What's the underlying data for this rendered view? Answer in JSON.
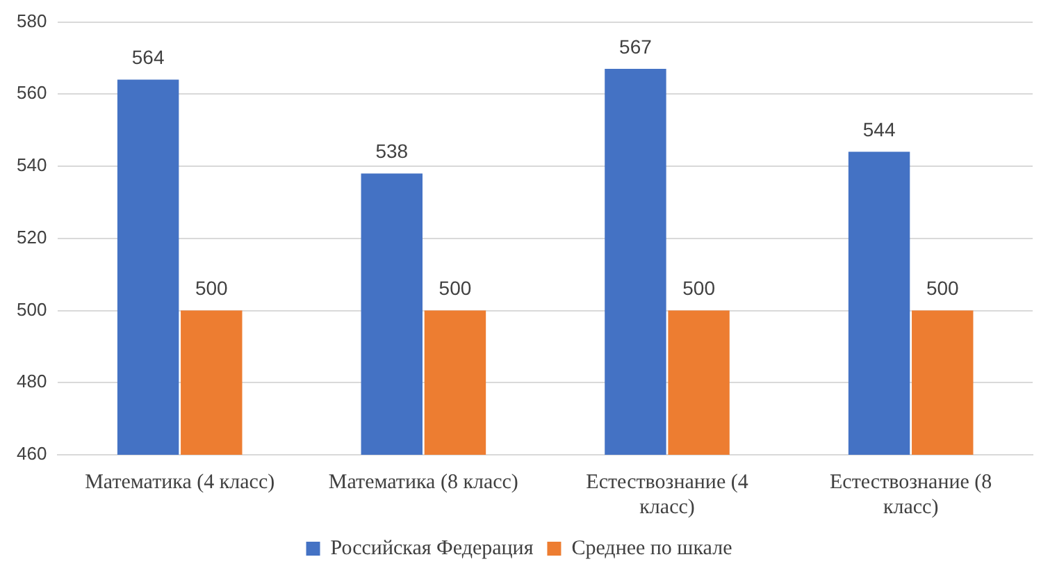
{
  "chart_data": {
    "type": "bar",
    "categories": [
      "Математика (4 класс)",
      "Математика (8 класс)",
      "Естествознание (4 класс)",
      "Естествознание (8 класс)"
    ],
    "series": [
      {
        "name": "Российская Федерация",
        "color": "#4472c4",
        "values": [
          564,
          538,
          567,
          544
        ]
      },
      {
        "name": "Среднее по шкале",
        "color": "#ed7d31",
        "values": [
          500,
          500,
          500,
          500
        ]
      }
    ],
    "ylim": [
      460,
      580
    ],
    "yticks": [
      460,
      480,
      500,
      520,
      540,
      560,
      580
    ],
    "grid": "y",
    "legend": "bottom",
    "data_labels": true
  }
}
